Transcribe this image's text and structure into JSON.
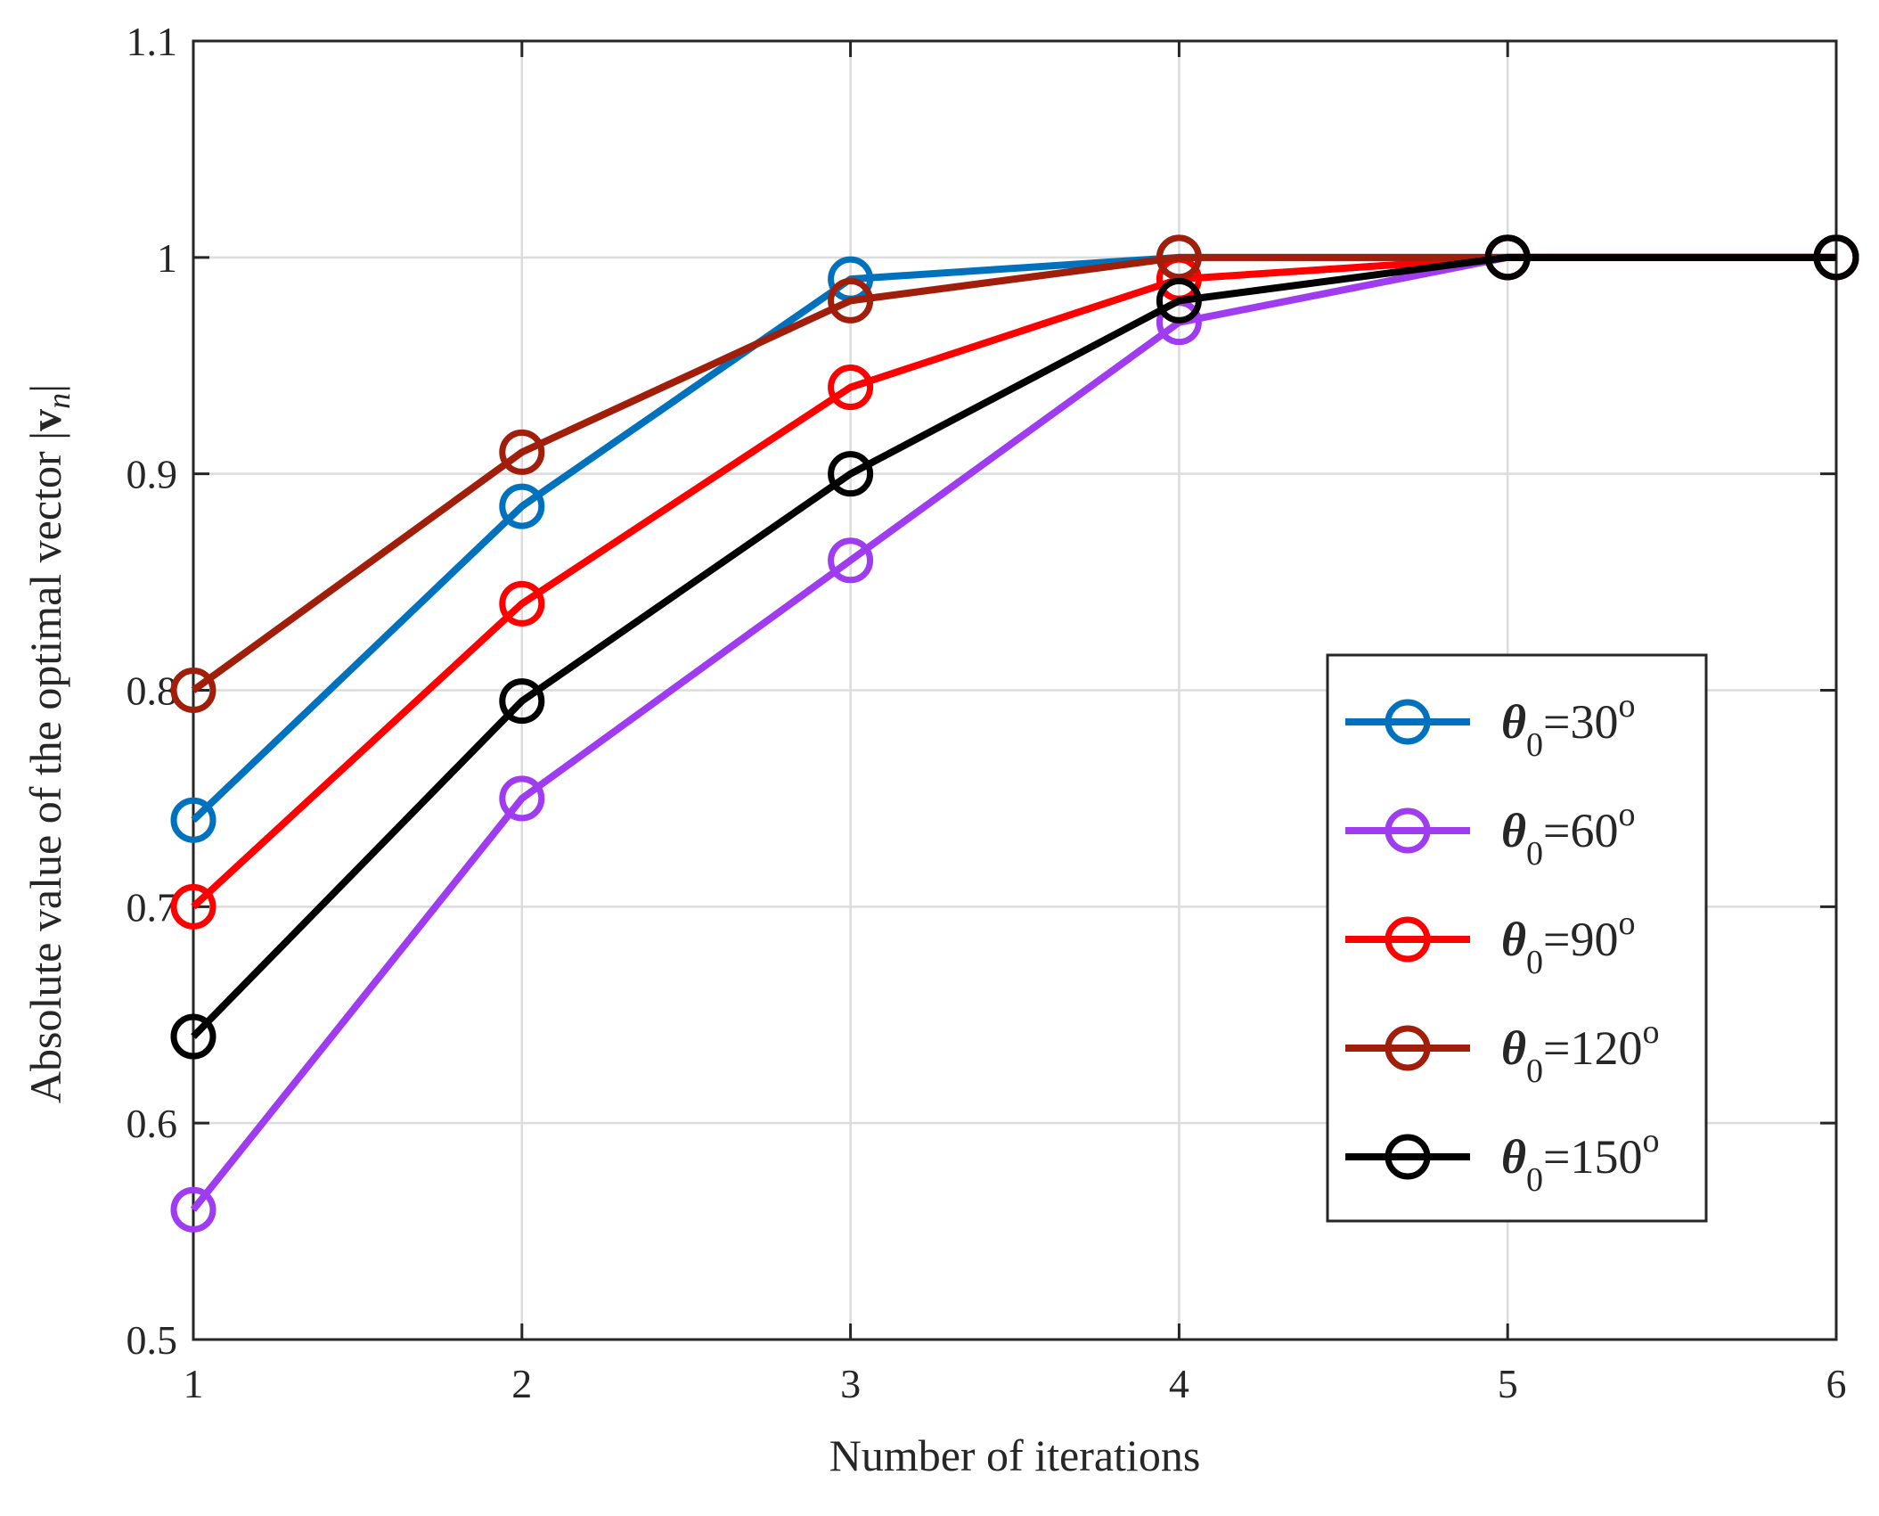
{
  "chart_data": {
    "type": "line",
    "title": "",
    "xlabel": "Number of iterations",
    "ylabel": {
      "text": "Absolute value of the optimal vector |",
      "vector_symbol": "v",
      "subscript": "n",
      "closing": "|"
    },
    "xlim": [
      1,
      6
    ],
    "ylim": [
      0.5,
      1.1
    ],
    "xticks": [
      "1",
      "2",
      "3",
      "4",
      "5",
      "6"
    ],
    "yticks": [
      "0.5",
      "0.6",
      "0.7",
      "0.8",
      "0.9",
      "1",
      "1.1"
    ],
    "grid": true,
    "legend_position": "right-middle",
    "x": [
      1,
      2,
      3,
      4,
      5,
      6
    ],
    "series": [
      {
        "name": "θ0=30°",
        "legend": {
          "symbol": "θ",
          "sub": "0",
          "value": "=30",
          "sup": "o"
        },
        "color": "#0072BD",
        "values": [
          0.74,
          0.885,
          0.99,
          1.0,
          1.0,
          1.0
        ]
      },
      {
        "name": "θ0=60°",
        "legend": {
          "symbol": "θ",
          "sub": "0",
          "value": "=60",
          "sup": "o"
        },
        "color": "#A03CF0",
        "values": [
          0.56,
          0.75,
          0.86,
          0.97,
          1.0,
          1.0
        ]
      },
      {
        "name": "θ0=90°",
        "legend": {
          "symbol": "θ",
          "sub": "0",
          "value": "=90",
          "sup": "o"
        },
        "color": "#FF0000",
        "values": [
          0.7,
          0.84,
          0.94,
          0.99,
          1.0,
          1.0
        ]
      },
      {
        "name": "θ0=120°",
        "legend": {
          "symbol": "θ",
          "sub": "0",
          "value": "=120",
          "sup": "o"
        },
        "color": "#A01E0A",
        "values": [
          0.8,
          0.91,
          0.98,
          1.0,
          1.0,
          1.0
        ]
      },
      {
        "name": "θ0=150°",
        "legend": {
          "symbol": "θ",
          "sub": "0",
          "value": "=150",
          "sup": "o"
        },
        "color": "#000000",
        "values": [
          0.64,
          0.795,
          0.9,
          0.98,
          1.0,
          1.0
        ]
      }
    ]
  }
}
